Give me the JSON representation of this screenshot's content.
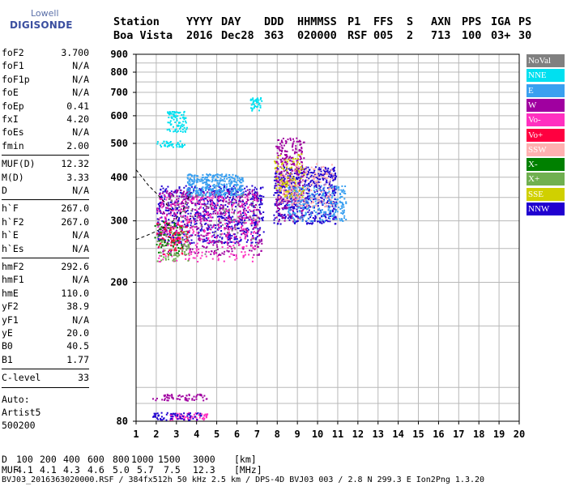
{
  "logo": {
    "top": "Lowell",
    "main": "DIGISONDE"
  },
  "header": {
    "labels": [
      "Station",
      "YYYY",
      "DAY",
      "DDD",
      "HHMMSS",
      "P1",
      "FFS",
      "S",
      "AXN",
      "PPS",
      "IGA",
      "PS"
    ],
    "values": [
      "Boa Vista",
      "2016",
      "Dec28",
      "363",
      "020000",
      "RSF",
      "005",
      "2",
      "713",
      "100",
      "03+",
      "30"
    ]
  },
  "params": {
    "group1": [
      {
        "label": "foF2",
        "value": "3.700"
      },
      {
        "label": "foF1",
        "value": "N/A"
      },
      {
        "label": "foF1p",
        "value": "N/A"
      },
      {
        "label": "foE",
        "value": "N/A"
      },
      {
        "label": "foEp",
        "value": "0.41"
      },
      {
        "label": "fxI",
        "value": "4.20"
      },
      {
        "label": "foEs",
        "value": "N/A"
      },
      {
        "label": "fmin",
        "value": "2.00"
      }
    ],
    "group2": [
      {
        "label": "MUF(D)",
        "value": "12.32"
      },
      {
        "label": "M(D)",
        "value": "3.33"
      },
      {
        "label": "D",
        "value": "N/A"
      }
    ],
    "group3": [
      {
        "label": "h`F",
        "value": "267.0"
      },
      {
        "label": "h`F2",
        "value": "267.0"
      },
      {
        "label": "h`E",
        "value": "N/A"
      },
      {
        "label": "h`Es",
        "value": "N/A"
      }
    ],
    "group4": [
      {
        "label": "hmF2",
        "value": "292.6"
      },
      {
        "label": "hmF1",
        "value": "N/A"
      },
      {
        "label": "hmE",
        "value": "110.0"
      },
      {
        "label": "yF2",
        "value": "38.9"
      },
      {
        "label": "yF1",
        "value": "N/A"
      },
      {
        "label": "yE",
        "value": "20.0"
      },
      {
        "label": "B0",
        "value": "40.5"
      },
      {
        "label": "B1",
        "value": "1.77"
      }
    ],
    "group5": [
      {
        "label": "C-level",
        "value": "33"
      }
    ],
    "scaler": [
      "Auto:",
      "Artist5",
      "500200"
    ]
  },
  "footer": {
    "d_label": "D",
    "d_values": [
      "100",
      "200",
      "400",
      "600",
      "800",
      "1000",
      "1500",
      "3000"
    ],
    "d_unit": "[km]",
    "muf_label": "MUF",
    "muf_values": [
      "4.1",
      "4.1",
      "4.3",
      "4.6",
      "5.0",
      "5.7",
      "7.5",
      "12.3"
    ],
    "muf_unit": "[MHz]",
    "file_line": "BVJ03_2016363020000.RSF / 384fx512h 50 kHz 2.5 km / DPS-4D BVJ03 003 / 2.8 N 299.3 E Ion2Png 1.3.20"
  },
  "legend": [
    {
      "label": "NoVal",
      "color": "#808080"
    },
    {
      "label": "NNE",
      "color": "#00e0f0"
    },
    {
      "label": "E",
      "color": "#3aa0f0"
    },
    {
      "label": "W",
      "color": "#a000a0"
    },
    {
      "label": "Vo-",
      "color": "#ff30c0"
    },
    {
      "label": "Vo+",
      "color": "#ff0040"
    },
    {
      "label": "SSW",
      "color": "#ffb0b0"
    },
    {
      "label": "X-",
      "color": "#008000"
    },
    {
      "label": "X+",
      "color": "#70b050"
    },
    {
      "label": "SSE",
      "color": "#d0d000"
    },
    {
      "label": "NNW",
      "color": "#2000d0"
    }
  ],
  "chart_data": {
    "type": "scatter",
    "title": "",
    "xlabel": "",
    "ylabel": "",
    "xlim": [
      1,
      20
    ],
    "ylim": [
      80,
      900
    ],
    "x_scale": "linear",
    "y_scale": "log",
    "grid": true,
    "x_ticks": [
      "1",
      "2",
      "3",
      "4",
      "5",
      "6",
      "7",
      "8",
      "9",
      "10",
      "11",
      "12",
      "13",
      "14",
      "15",
      "16",
      "17",
      "18",
      "19",
      "20"
    ],
    "y_ticks": [
      {
        "value": 80,
        "label": "80"
      },
      {
        "value": 200,
        "label": "200"
      },
      {
        "value": 300,
        "label": "300"
      },
      {
        "value": 400,
        "label": "400"
      },
      {
        "value": 500,
        "label": "500"
      },
      {
        "value": 600,
        "label": "600"
      },
      {
        "value": 700,
        "label": "700"
      },
      {
        "value": 800,
        "label": "800"
      },
      {
        "value": 900,
        "label": "900"
      }
    ],
    "y_gridlines": [
      90,
      100,
      150,
      200,
      250,
      300,
      350,
      400,
      450,
      500,
      550,
      600,
      650,
      700,
      750,
      800,
      850,
      900
    ],
    "clusters": [
      {
        "name": "NNW",
        "color": "#2000d0",
        "x": [
          2.0,
          7.3
        ],
        "y": [
          260,
          380
        ],
        "n": 700
      },
      {
        "name": "NNW",
        "color": "#2000d0",
        "x": [
          7.8,
          10.9
        ],
        "y": [
          295,
          430
        ],
        "n": 600
      },
      {
        "name": "W",
        "color": "#a000a0",
        "x": [
          2.0,
          7.2
        ],
        "y": [
          240,
          370
        ],
        "n": 500
      },
      {
        "name": "W",
        "color": "#a000a0",
        "x": [
          7.9,
          9.3
        ],
        "y": [
          300,
          520
        ],
        "n": 300
      },
      {
        "name": "Vo-",
        "color": "#ff30c0",
        "x": [
          2.0,
          7.0
        ],
        "y": [
          230,
          360
        ],
        "n": 350
      },
      {
        "name": "E",
        "color": "#3aa0f0",
        "x": [
          3.5,
          6.3
        ],
        "y": [
          355,
          410
        ],
        "n": 350
      },
      {
        "name": "E",
        "color": "#3aa0f0",
        "x": [
          8.5,
          11.4
        ],
        "y": [
          300,
          380
        ],
        "n": 250
      },
      {
        "name": "NNE",
        "color": "#00e0f0",
        "x": [
          2.5,
          3.5
        ],
        "y": [
          540,
          620
        ],
        "n": 90
      },
      {
        "name": "NNE",
        "color": "#00e0f0",
        "x": [
          2.0,
          3.4
        ],
        "y": [
          490,
          510
        ],
        "n": 40
      },
      {
        "name": "NNE",
        "color": "#00e0f0",
        "x": [
          6.6,
          7.2
        ],
        "y": [
          620,
          680
        ],
        "n": 40
      },
      {
        "name": "SSW",
        "color": "#ffb0b0",
        "x": [
          8.0,
          10.8
        ],
        "y": [
          330,
          440
        ],
        "n": 200
      },
      {
        "name": "SSE",
        "color": "#d0d000",
        "x": [
          7.8,
          9.3
        ],
        "y": [
          350,
          470
        ],
        "n": 90
      },
      {
        "name": "X+",
        "color": "#70b050",
        "x": [
          2.0,
          3.6
        ],
        "y": [
          230,
          290
        ],
        "n": 90
      },
      {
        "name": "X-",
        "color": "#008000",
        "x": [
          1.9,
          3.3
        ],
        "y": [
          240,
          300
        ],
        "n": 60
      },
      {
        "name": "Vo+",
        "color": "#ff0040",
        "x": [
          2.0,
          3.6
        ],
        "y": [
          240,
          300
        ],
        "n": 60
      },
      {
        "name": "NoVal",
        "color": "#808080",
        "x": [
          2.5,
          7.0
        ],
        "y": [
          240,
          360
        ],
        "n": 80
      },
      {
        "name": "W",
        "color": "#a000a0",
        "x": [
          1.8,
          4.5
        ],
        "y": [
          92,
          96
        ],
        "n": 60
      },
      {
        "name": "Vo-",
        "color": "#ff30c0",
        "x": [
          2.6,
          4.5
        ],
        "y": [
          81,
          85
        ],
        "n": 60
      },
      {
        "name": "NNW",
        "color": "#2000d0",
        "x": [
          1.8,
          4.2
        ],
        "y": [
          81,
          85
        ],
        "n": 60
      }
    ],
    "profile_curve": {
      "x": [
        1.0,
        1.5,
        2.0,
        2.5,
        3.0,
        3.3,
        3.5,
        3.7
      ],
      "y": [
        265,
        272,
        280,
        290,
        305,
        320,
        340,
        360
      ]
    },
    "profile_curve_upper": {
      "x": [
        1.0,
        1.3,
        1.6,
        2.0,
        2.4,
        2.8
      ],
      "y": [
        420,
        400,
        380,
        360,
        340,
        320
      ]
    }
  }
}
